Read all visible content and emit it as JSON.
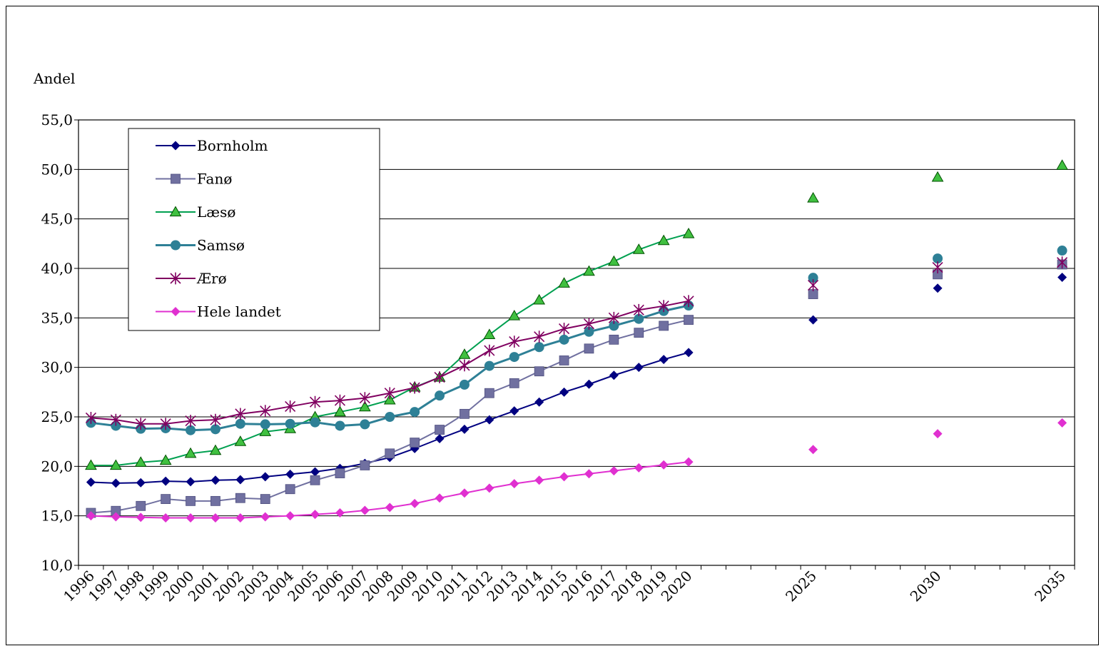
{
  "chart_data": {
    "type": "line",
    "title": "",
    "ylabel": "Andel",
    "xlabel": "",
    "ylim": [
      10,
      55
    ],
    "yticks": [
      10,
      15,
      20,
      25,
      30,
      35,
      40,
      45,
      50,
      55
    ],
    "ytick_labels": [
      "10,0",
      "15,0",
      "20,0",
      "25,0",
      "30,0",
      "35,0",
      "40,0",
      "45,0",
      "50,0",
      "55,0"
    ],
    "x": [
      "1996",
      "1997",
      "1998",
      "1999",
      "2000",
      "2001",
      "2002",
      "2003",
      "2004",
      "2005",
      "2006",
      "2007",
      "2008",
      "2009",
      "2010",
      "2011",
      "2012",
      "2013",
      "2014",
      "2015",
      "2016",
      "2017",
      "2018",
      "2019",
      "2020",
      "2025",
      "2030",
      "2035"
    ],
    "lines_connect_through": "2020",
    "grid": true,
    "legend_placement": "top-left",
    "series": [
      {
        "name": "Bornholm",
        "color": "#000080",
        "marker": "diamond",
        "values": [
          18.4,
          18.3,
          18.35,
          18.5,
          18.45,
          18.6,
          18.65,
          18.95,
          19.2,
          19.45,
          19.8,
          20.3,
          20.9,
          21.8,
          22.8,
          23.75,
          24.7,
          25.6,
          26.5,
          27.5,
          28.3,
          29.2,
          30.0,
          30.8,
          31.5,
          34.8,
          38.0,
          39.1
        ]
      },
      {
        "name": "Fanø",
        "color": "#7070a0",
        "marker": "square",
        "values": [
          15.3,
          15.5,
          16.0,
          16.7,
          16.5,
          16.5,
          16.8,
          16.7,
          17.7,
          18.6,
          19.3,
          20.1,
          21.3,
          22.4,
          23.7,
          25.3,
          27.4,
          28.4,
          29.6,
          30.7,
          31.9,
          32.8,
          33.5,
          34.2,
          34.8,
          37.4,
          39.4,
          40.4
        ]
      },
      {
        "name": "Læsø",
        "color": "#00a050",
        "marker": "triangle",
        "values": [
          20.1,
          20.1,
          20.4,
          20.6,
          21.3,
          21.6,
          22.5,
          23.5,
          23.8,
          25.0,
          25.5,
          26.0,
          26.7,
          28.0,
          29.0,
          31.3,
          33.3,
          35.2,
          36.8,
          38.5,
          39.7,
          40.7,
          41.9,
          42.8,
          43.5,
          47.1,
          49.2,
          50.4
        ]
      },
      {
        "name": "Samsø",
        "color": "#2e8096",
        "marker": "circle",
        "values": [
          24.4,
          24.1,
          23.8,
          23.85,
          23.65,
          23.75,
          24.3,
          24.25,
          24.3,
          24.45,
          24.1,
          24.25,
          25.0,
          25.5,
          27.15,
          28.25,
          30.15,
          31.05,
          32.05,
          32.8,
          33.6,
          34.2,
          34.9,
          35.7,
          36.25,
          39.05,
          41.0,
          41.8
        ]
      },
      {
        "name": "Ærø",
        "color": "#800060",
        "marker": "star",
        "values": [
          24.9,
          24.7,
          24.3,
          24.3,
          24.6,
          24.7,
          25.3,
          25.6,
          26.05,
          26.5,
          26.65,
          26.9,
          27.4,
          27.95,
          29.0,
          30.2,
          31.7,
          32.6,
          33.1,
          33.9,
          34.4,
          35.0,
          35.8,
          36.2,
          36.7,
          38.3,
          40.1,
          40.6
        ]
      },
      {
        "name": "Hele landet",
        "color": "#e030d0",
        "marker": "diamond",
        "values": [
          15.0,
          14.9,
          14.85,
          14.8,
          14.8,
          14.8,
          14.8,
          14.9,
          15.0,
          15.15,
          15.3,
          15.55,
          15.85,
          16.25,
          16.8,
          17.3,
          17.8,
          18.25,
          18.6,
          18.95,
          19.25,
          19.55,
          19.85,
          20.15,
          20.45,
          21.7,
          23.3,
          24.4
        ]
      }
    ]
  }
}
